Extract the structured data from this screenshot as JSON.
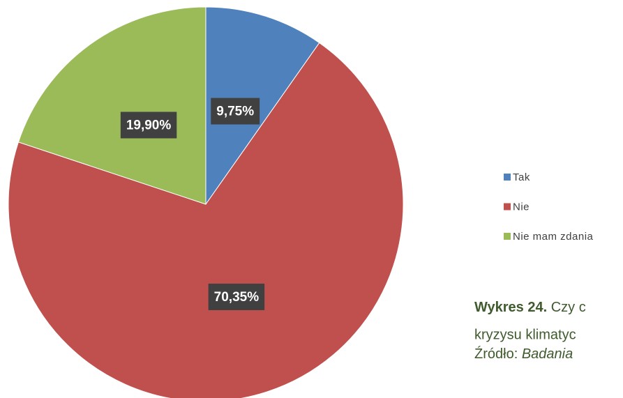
{
  "chart_data": {
    "type": "pie",
    "categories": [
      "Tak",
      "Nie",
      "Nie mam zdania"
    ],
    "values": [
      9.75,
      70.35,
      19.9
    ],
    "value_labels": [
      "9,75%",
      "70,35%",
      "19,90%"
    ],
    "colors": [
      "#4f81bd",
      "#c0504d",
      "#9bbb59"
    ],
    "legend": "right"
  },
  "caption": {
    "label": "Wykres 24.",
    "line1": "Czy c",
    "line2": "kryzysu klimatyc",
    "source_label": "Źródło:",
    "source": "Badania"
  }
}
